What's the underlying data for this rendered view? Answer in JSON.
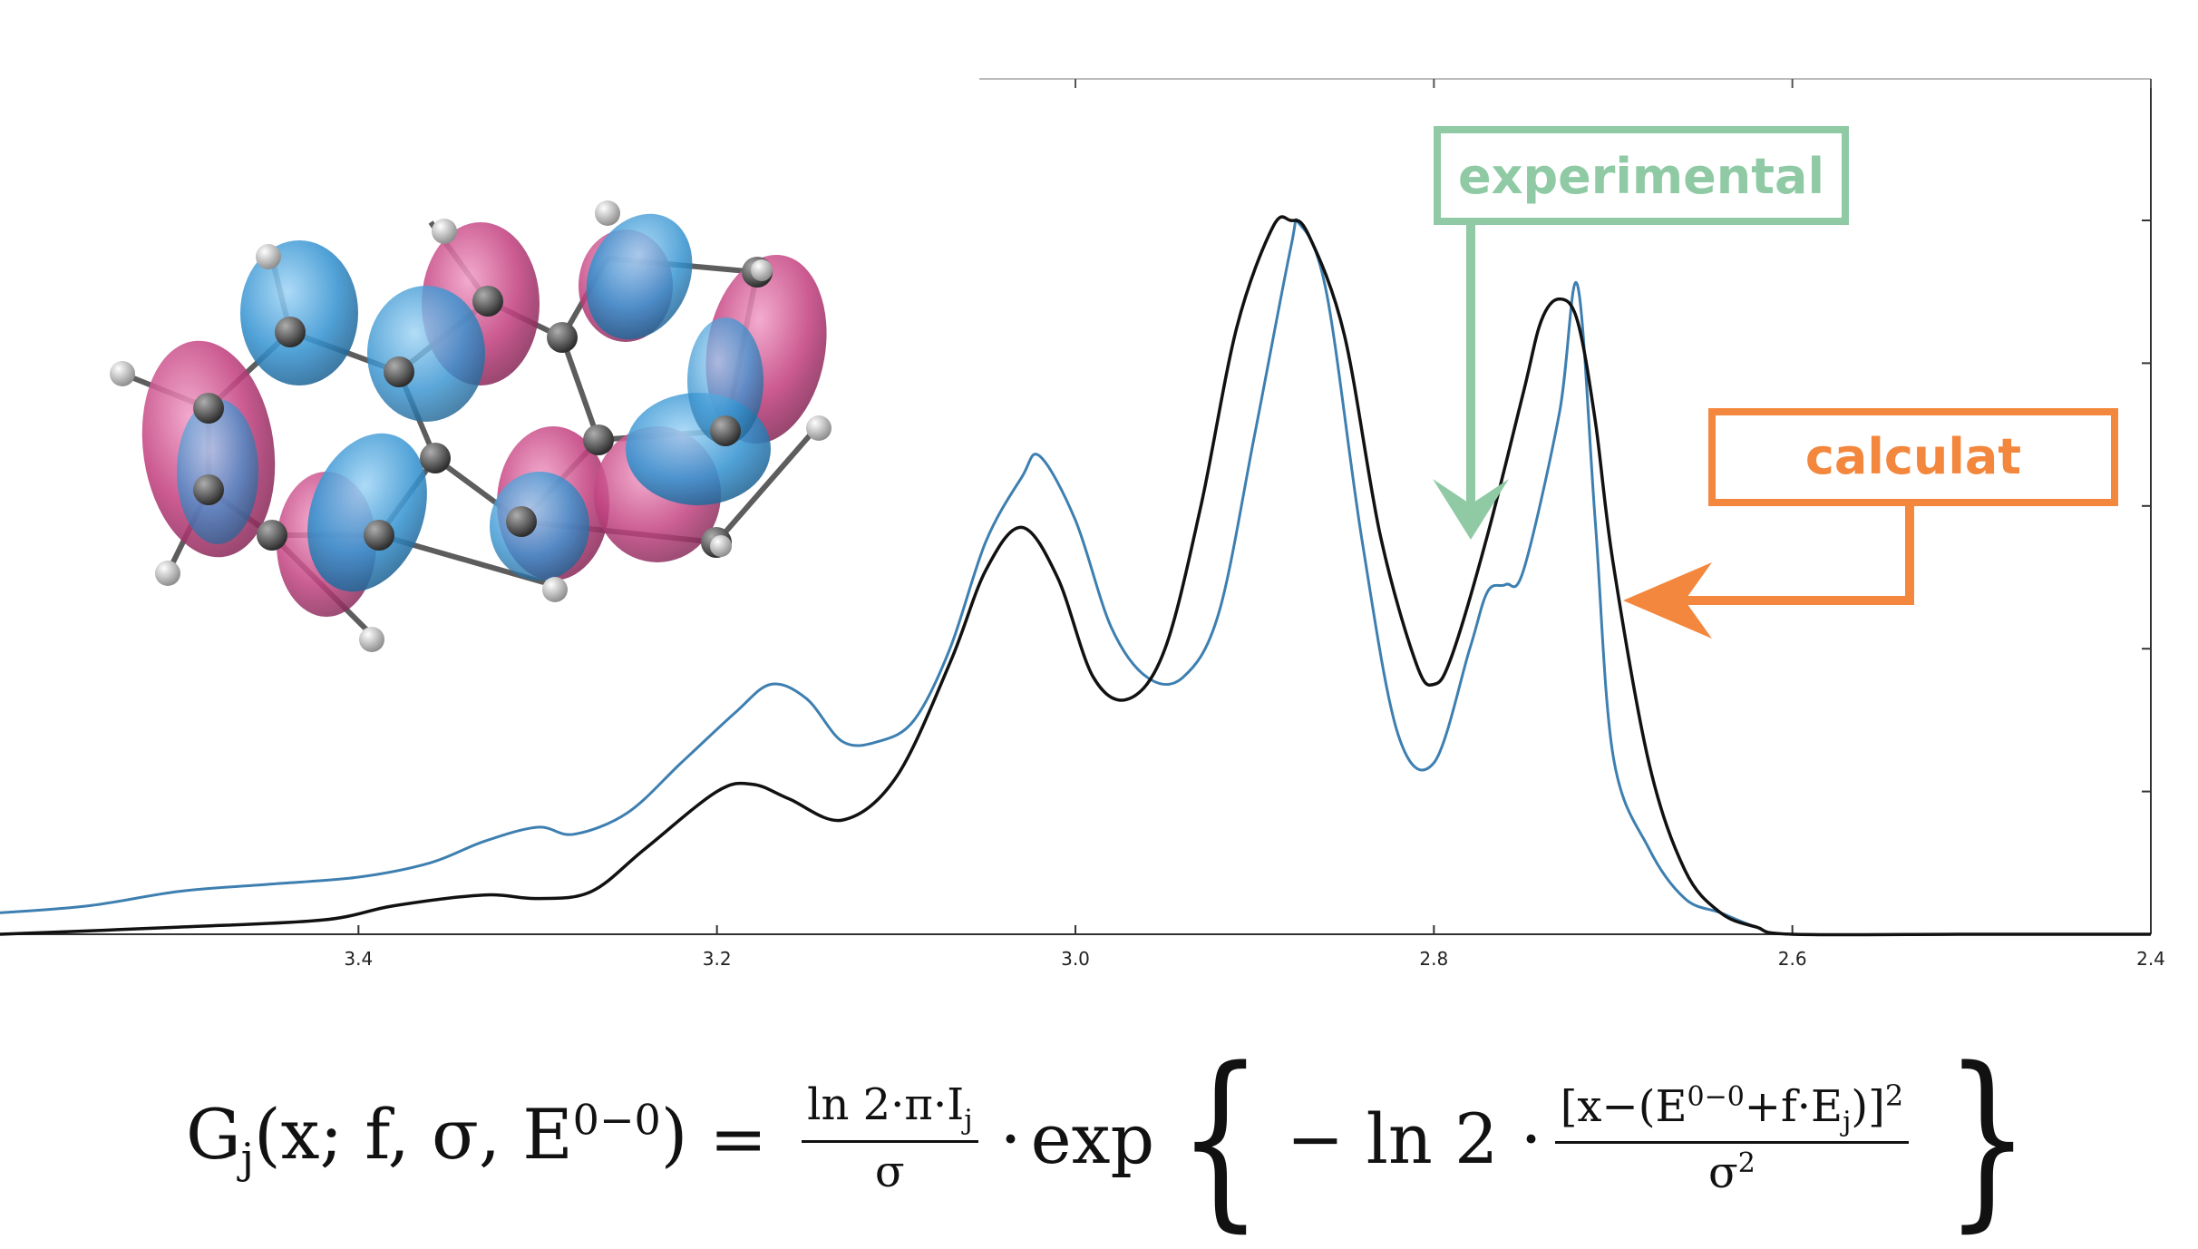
{
  "chart_data": {
    "type": "line",
    "x_axis": {
      "range": [
        3.6,
        2.4
      ],
      "ticks": [
        3.4,
        3.2,
        3.0,
        2.8,
        2.6,
        2.4
      ],
      "tick_labels": [
        "3.4",
        "3.2",
        "3.0",
        "2.8",
        "2.6",
        "2.4"
      ]
    },
    "y_axis": {
      "range": [
        0,
        1.0
      ],
      "tick_values": [
        0.2,
        0.4,
        0.6,
        0.8,
        1.0
      ],
      "tick_labels_shown": false
    },
    "grid": false,
    "series": [
      {
        "name": "experimental",
        "color": "#3d7fb0",
        "x": [
          3.6,
          3.55,
          3.5,
          3.45,
          3.4,
          3.36,
          3.33,
          3.3,
          3.28,
          3.25,
          3.22,
          3.19,
          3.17,
          3.15,
          3.13,
          3.11,
          3.09,
          3.07,
          3.05,
          3.03,
          3.02,
          3.0,
          2.98,
          2.96,
          2.94,
          2.92,
          2.9,
          2.88,
          2.875,
          2.86,
          2.84,
          2.82,
          2.8,
          2.78,
          2.77,
          2.76,
          2.75,
          2.73,
          2.72,
          2.71,
          2.7,
          2.68,
          2.66,
          2.64,
          2.62,
          2.6,
          2.5,
          2.4
        ],
        "y": [
          0.03,
          0.04,
          0.06,
          0.07,
          0.08,
          0.1,
          0.13,
          0.15,
          0.14,
          0.17,
          0.24,
          0.31,
          0.35,
          0.33,
          0.27,
          0.27,
          0.3,
          0.4,
          0.55,
          0.64,
          0.67,
          0.58,
          0.43,
          0.36,
          0.36,
          0.45,
          0.7,
          0.96,
          0.995,
          0.9,
          0.55,
          0.28,
          0.24,
          0.4,
          0.48,
          0.49,
          0.51,
          0.73,
          0.91,
          0.58,
          0.25,
          0.12,
          0.05,
          0.03,
          0.01,
          0.0,
          0.0,
          0.0
        ]
      },
      {
        "name": "calculat",
        "color": "#111111",
        "x": [
          3.6,
          3.5,
          3.42,
          3.38,
          3.33,
          3.3,
          3.27,
          3.24,
          3.2,
          3.18,
          3.16,
          3.13,
          3.1,
          3.07,
          3.05,
          3.03,
          3.01,
          2.99,
          2.97,
          2.95,
          2.93,
          2.91,
          2.89,
          2.88,
          2.87,
          2.85,
          2.83,
          2.81,
          2.8,
          2.79,
          2.77,
          2.75,
          2.74,
          2.73,
          2.72,
          2.71,
          2.7,
          2.68,
          2.66,
          2.64,
          2.62,
          2.6,
          2.5,
          2.4
        ],
        "y": [
          0.0,
          0.01,
          0.02,
          0.04,
          0.055,
          0.05,
          0.06,
          0.12,
          0.2,
          0.21,
          0.19,
          0.16,
          0.22,
          0.38,
          0.51,
          0.57,
          0.5,
          0.36,
          0.33,
          0.4,
          0.6,
          0.85,
          0.99,
          1.0,
          0.98,
          0.84,
          0.56,
          0.38,
          0.35,
          0.39,
          0.56,
          0.76,
          0.86,
          0.89,
          0.86,
          0.72,
          0.52,
          0.24,
          0.09,
          0.03,
          0.01,
          0.0,
          0.0,
          0.0
        ]
      }
    ],
    "annotations": [
      "experimental",
      "calculat"
    ]
  },
  "callouts": {
    "experimental": {
      "label": "experimental",
      "color": "#8fcaa5"
    },
    "calculat": {
      "label": "calculat",
      "color": "#f2873d"
    }
  },
  "molecule": {
    "lobe_colors": [
      "#c0397a",
      "#2e8fcf"
    ],
    "atom_color": "#444444",
    "hydrogen_color": "#dddddd"
  },
  "formula": {
    "lhs_G": "G",
    "lhs_sub": "j",
    "lhs_args": "(x; f, σ, E",
    "lhs_sup": "0−0",
    "lhs_close": ")",
    "equals": "=",
    "frac1_num": "ln 2·π·I",
    "frac1_num_sub": "j",
    "frac1_den": "σ",
    "dot": "·",
    "exp": "exp",
    "brace_open": "{",
    "minus_ln2": "− ln 2 ·",
    "frac2_num_a": "[x−(E",
    "frac2_num_sup": "0−0",
    "frac2_num_b": "+f·E",
    "frac2_num_sub": "j",
    "frac2_num_c": ")]",
    "frac2_num_sq": "2",
    "frac2_den": "σ",
    "frac2_den_sup": "2",
    "brace_close": "}"
  }
}
